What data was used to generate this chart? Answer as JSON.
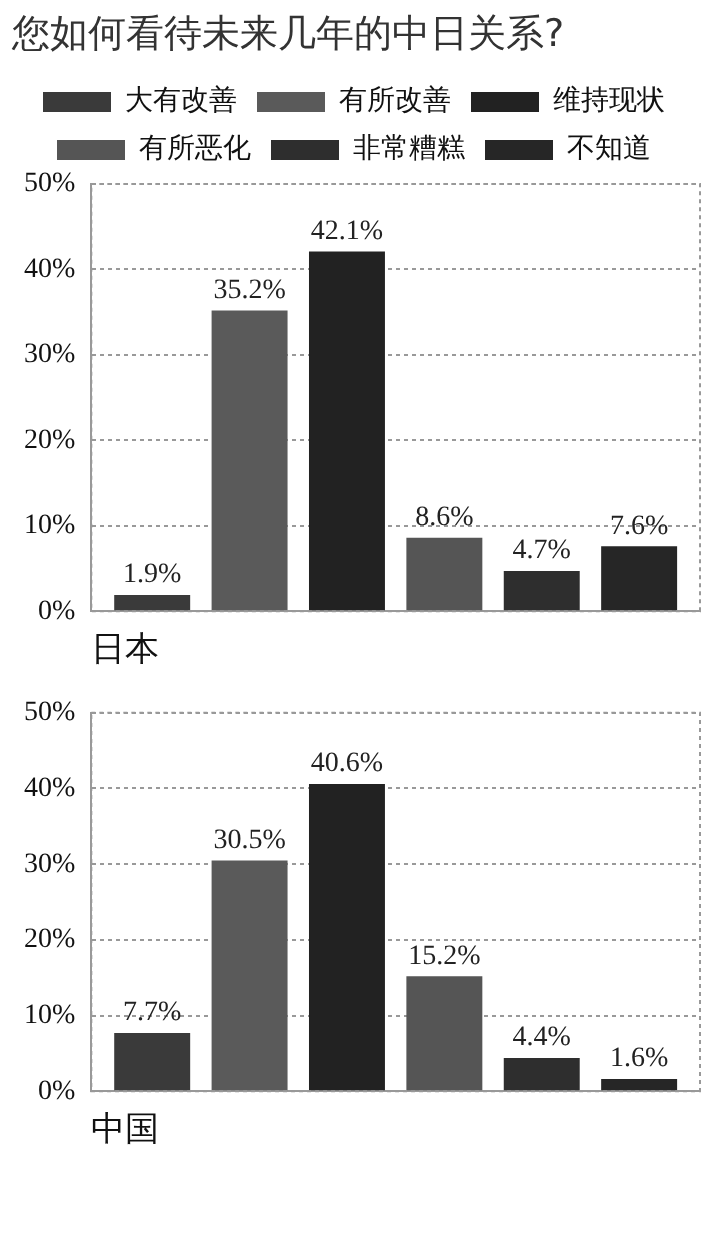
{
  "chart_data": [
    {
      "type": "bar",
      "title": "您如何看待未来几年的中日关系?",
      "xlabel": "日本",
      "categories": [
        null
      ],
      "series": [
        {
          "name": "大有改善",
          "color": "#3a3a3a",
          "values": [
            1.9
          ],
          "value_labels": [
            "1.9%"
          ]
        },
        {
          "name": "有所改善",
          "color": "#5a5a5a",
          "values": [
            35.2
          ],
          "value_labels": [
            "35.2%"
          ]
        },
        {
          "name": "维持现状",
          "color": "#222222",
          "values": [
            42.1
          ],
          "value_labels": [
            "42.1%"
          ]
        },
        {
          "name": "有所恶化",
          "color": "#555555",
          "values": [
            8.6
          ],
          "value_labels": [
            "8.6%"
          ]
        },
        {
          "name": "非常糟糕",
          "color": "#2e2e2e",
          "values": [
            4.7
          ],
          "value_labels": [
            "4.7%"
          ]
        },
        {
          "name": "不知道",
          "color": "#262626",
          "values": [
            7.6
          ],
          "value_labels": [
            "7.6%"
          ]
        }
      ],
      "ylim": [
        0,
        50
      ],
      "yticks": [
        {
          "value": 0,
          "label": "0%"
        },
        {
          "value": 10,
          "label": "10%"
        },
        {
          "value": 20,
          "label": "20%"
        },
        {
          "value": 30,
          "label": "30%"
        },
        {
          "value": 40,
          "label": "40%"
        },
        {
          "value": 50,
          "label": "50%"
        }
      ],
      "grid": "y",
      "legend": "top",
      "tick_labels": "y"
    },
    {
      "type": "bar",
      "xlabel": "中国",
      "categories": [
        null
      ],
      "series": [
        {
          "color": "#3a3a3a",
          "values": [
            7.7
          ],
          "value_labels": [
            "7.7%"
          ]
        },
        {
          "color": "#5a5a5a",
          "values": [
            30.5
          ],
          "value_labels": [
            "30.5%"
          ]
        },
        {
          "color": "#222222",
          "values": [
            40.6
          ],
          "value_labels": [
            "40.6%"
          ]
        },
        {
          "color": "#555555",
          "values": [
            15.2
          ],
          "value_labels": [
            "15.2%"
          ]
        },
        {
          "color": "#2e2e2e",
          "values": [
            4.4
          ],
          "value_labels": [
            "4.4%"
          ]
        },
        {
          "color": "#262626",
          "values": [
            1.6
          ],
          "value_labels": [
            "1.6%"
          ]
        }
      ],
      "ylim": [
        0,
        50
      ],
      "yticks": [
        {
          "value": 0,
          "label": "0%"
        },
        {
          "value": 10,
          "label": "10%"
        },
        {
          "value": 20,
          "label": "20%"
        },
        {
          "value": 30,
          "label": "30%"
        },
        {
          "value": 40,
          "label": "40%"
        },
        {
          "value": 50,
          "label": "50%"
        }
      ],
      "grid": "y",
      "tick_labels": "y"
    }
  ]
}
